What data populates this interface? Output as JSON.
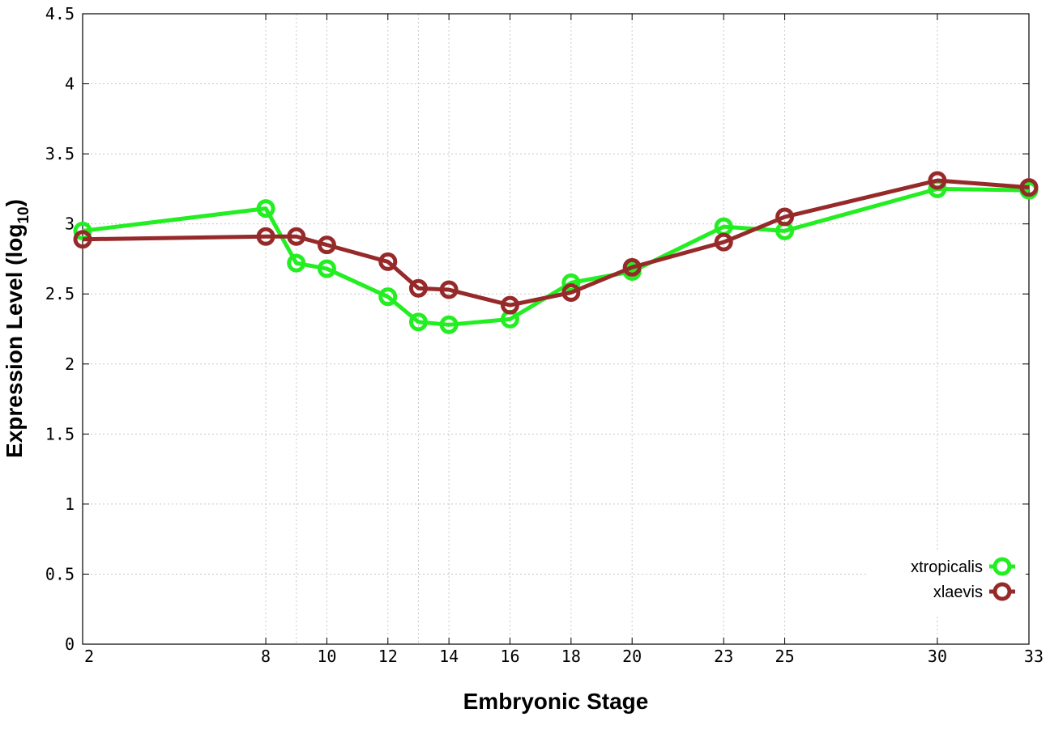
{
  "chart_data": {
    "type": "line",
    "xlabel": "Embryonic Stage",
    "ylabel_main": "Expression Level (log",
    "ylabel_sub": "10",
    "ylabel_close": ")",
    "ylim": [
      0,
      4.5
    ],
    "yticks": [
      0,
      0.5,
      1,
      1.5,
      2,
      2.5,
      3,
      3.5,
      4,
      4.5
    ],
    "ytick_labels": [
      "0",
      "0.5",
      "1",
      "1.5",
      "2",
      "2.5",
      "3",
      "3.5",
      "4",
      "4.5"
    ],
    "xticks": [
      2,
      8,
      10,
      12,
      14,
      16,
      18,
      20,
      23,
      25,
      30,
      33
    ],
    "x_minor_grid": [
      9,
      13
    ],
    "xlim": [
      2,
      33
    ],
    "grid": true,
    "legend_position": "bottom-right",
    "series": [
      {
        "name": "xtropicalis",
        "color": "#22ee22",
        "x": [
          2,
          8,
          9,
          10,
          12,
          13,
          14,
          16,
          18,
          20,
          23,
          25,
          30,
          33
        ],
        "values": [
          2.95,
          3.11,
          2.72,
          2.68,
          2.48,
          2.3,
          2.28,
          2.32,
          2.58,
          2.66,
          2.98,
          2.95,
          3.25,
          3.24
        ]
      },
      {
        "name": "xlaevis",
        "color": "#962a2a",
        "x": [
          2,
          8,
          9,
          10,
          12,
          13,
          14,
          16,
          18,
          20,
          23,
          25,
          30,
          33
        ],
        "values": [
          2.89,
          2.91,
          2.91,
          2.85,
          2.73,
          2.54,
          2.53,
          2.42,
          2.51,
          2.69,
          2.87,
          3.05,
          3.31,
          3.26
        ]
      }
    ]
  }
}
